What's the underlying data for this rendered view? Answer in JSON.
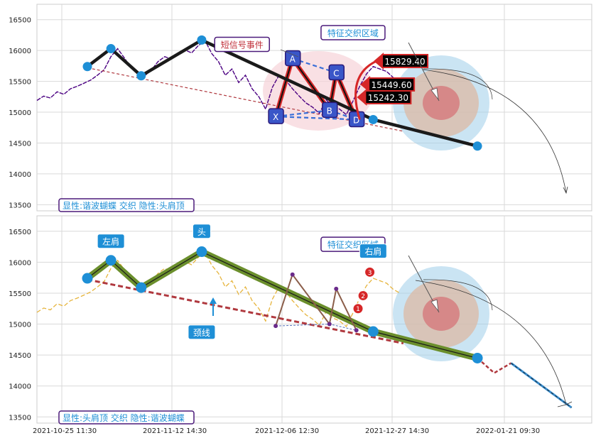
{
  "chart_data": [
    {
      "type": "line",
      "panel": "top",
      "y_ticks": [
        13500,
        14000,
        14500,
        15000,
        15500,
        16000,
        16500
      ],
      "ylim": [
        13400,
        16750
      ],
      "x_ticks": [
        "2021-10-25 11:30",
        "2021-11-12 14:30",
        "2021-12-06 12:30",
        "2021-12-27 14:30",
        "2022-01-21 09:30"
      ],
      "grid": true,
      "series": [
        {
          "kind": "price",
          "color": "#4b0082",
          "x": [
            0,
            2,
            4,
            6,
            8,
            10,
            12,
            14,
            16,
            18,
            20,
            22,
            24,
            26,
            28,
            30,
            32,
            34,
            36,
            38,
            40,
            42,
            44,
            46,
            48,
            50,
            52,
            54,
            56,
            58,
            60,
            62,
            64,
            66,
            68,
            70,
            72,
            74,
            76,
            78,
            80,
            82,
            84,
            86,
            88,
            90,
            92,
            94,
            96,
            98,
            100,
            102,
            104,
            106,
            108
          ],
          "values": [
            15190,
            15260,
            15230,
            15330,
            15290,
            15380,
            15420,
            15470,
            15520,
            15600,
            15690,
            15900,
            16030,
            15880,
            15720,
            15640,
            15590,
            15680,
            15820,
            15900,
            15860,
            15940,
            16010,
            15960,
            16080,
            16160,
            15950,
            15820,
            15600,
            15700,
            15480,
            15600,
            15380,
            15250,
            15050,
            15400,
            15600,
            15520,
            15380,
            15260,
            15150,
            15080,
            14980,
            15200,
            15100,
            15050,
            14960,
            15180,
            15420,
            15620,
            15740,
            15700,
            15660,
            15560,
            15500
          ]
        }
      ],
      "head_shoulders": {
        "x": [
          15,
          22,
          31,
          49,
          100,
          131
        ],
        "values": [
          15740,
          16030,
          15590,
          16170,
          14880,
          14450
        ]
      },
      "neckline": {
        "x": [
          15,
          109
        ],
        "values": [
          15720,
          14690
        ]
      },
      "xabcd": {
        "labels": [
          "X",
          "A",
          "B",
          "C",
          "D"
        ],
        "x": [
          71,
          76,
          87,
          89,
          95
        ],
        "values": [
          14930,
          15870,
          15030,
          15640,
          14880
        ]
      },
      "targets": [
        {
          "text": "15829.40",
          "x": 101,
          "value": 15829.4
        },
        {
          "text": "15449.60",
          "x": 97,
          "value": 15449.6
        },
        {
          "text": "15242.30",
          "x": 96,
          "value": 15242.3
        }
      ],
      "annotations": [
        {
          "text": "短信号事件",
          "x": 61,
          "value": 16100
        },
        {
          "text": "特征交织区域",
          "x": 94,
          "value": 16290
        }
      ],
      "title_box": "显性:谐波蝴蝶 交织 隐性:头肩顶"
    },
    {
      "type": "line",
      "panel": "bottom",
      "y_ticks": [
        13500,
        14000,
        14500,
        15000,
        15500,
        16000,
        16500
      ],
      "ylim": [
        13400,
        16750
      ],
      "x_ticks": [
        "2021-10-25 11:30",
        "2021-11-12 14:30",
        "2021-12-06 12:30",
        "2021-12-27 14:30",
        "2022-01-21 09:30"
      ],
      "grid": true,
      "series": [
        {
          "kind": "price",
          "color": "#e6b43c",
          "x": [
            0,
            2,
            4,
            6,
            8,
            10,
            12,
            14,
            16,
            18,
            20,
            22,
            24,
            26,
            28,
            30,
            32,
            34,
            36,
            38,
            40,
            42,
            44,
            46,
            48,
            50,
            52,
            54,
            56,
            58,
            60,
            62,
            64,
            66,
            68,
            70,
            72,
            74,
            76,
            78,
            80,
            82,
            84,
            86,
            88,
            90,
            92,
            94,
            96,
            98,
            100,
            102,
            104,
            106,
            108
          ],
          "values": [
            15190,
            15260,
            15230,
            15330,
            15290,
            15380,
            15420,
            15470,
            15520,
            15600,
            15690,
            15900,
            16030,
            15880,
            15720,
            15640,
            15590,
            15680,
            15820,
            15900,
            15860,
            15940,
            16010,
            15960,
            16080,
            16160,
            15950,
            15820,
            15600,
            15700,
            15480,
            15600,
            15380,
            15250,
            15050,
            15400,
            15600,
            15520,
            15380,
            15260,
            15150,
            15080,
            14980,
            15200,
            15100,
            15050,
            14960,
            15180,
            15420,
            15620,
            15740,
            15700,
            15660,
            15560,
            15500
          ]
        }
      ],
      "head_shoulders": {
        "x": [
          15,
          22,
          31,
          49,
          100,
          131
        ],
        "values": [
          15740,
          16030,
          15590,
          16170,
          14880,
          14450
        ]
      },
      "extension": {
        "x": [
          131,
          136,
          141,
          159
        ],
        "values": [
          14450,
          14210,
          14370,
          13650
        ]
      },
      "neckline": {
        "x": [
          15,
          109
        ],
        "values": [
          15720,
          14690
        ]
      },
      "butterfly": {
        "x": [
          71,
          76,
          87,
          89,
          95
        ],
        "values": [
          14970,
          15800,
          15000,
          15570,
          14900
        ]
      },
      "numbered_points": [
        "1",
        "2",
        "3"
      ],
      "annotations": [
        {
          "text": "左肩",
          "x": 22,
          "value": 16340
        },
        {
          "text": "头",
          "x": 49,
          "value": 16500
        },
        {
          "text": "颈线",
          "x": 49,
          "value": 14870
        },
        {
          "text": "特征交织区域",
          "x": 94,
          "value": 16290
        },
        {
          "text": "右肩",
          "x": 100,
          "value": 16180
        }
      ],
      "title_box": "显性:头肩顶 交织 隐性:谐波蝴蝶"
    }
  ]
}
